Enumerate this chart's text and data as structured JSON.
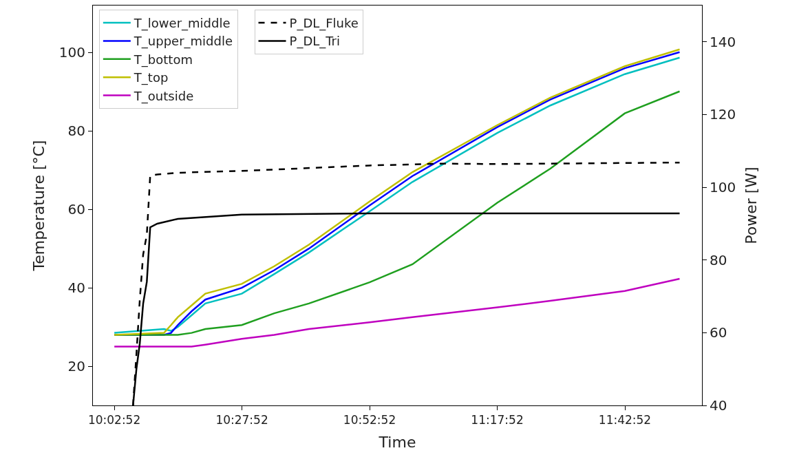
{
  "chart_data": {
    "type": "line",
    "xlabel": "Time",
    "ylabel": "Temperature [°C]",
    "y2label": "Power [W]",
    "xlim": [
      9.978,
      11.966
    ],
    "xticks": [
      {
        "value": 10.047778,
        "label": "10:02:52"
      },
      {
        "value": 10.464444,
        "label": "10:27:52"
      },
      {
        "value": 10.881111,
        "label": "10:52:52"
      },
      {
        "value": 11.297778,
        "label": "11:17:52"
      },
      {
        "value": 11.714444,
        "label": "11:42:52"
      }
    ],
    "ylim": [
      10,
      112
    ],
    "yticks": [
      20,
      40,
      60,
      80,
      100
    ],
    "y2lim": [
      40,
      150
    ],
    "y2ticks": [
      40,
      60,
      80,
      100,
      120,
      140
    ],
    "legend": "top left",
    "marker": "none",
    "series": [
      {
        "name": "T_lower_middle",
        "color": "#00bfbf",
        "line_style": "solid",
        "x": [
          10.048,
          10.21,
          10.233,
          10.255,
          10.3,
          10.345,
          10.464,
          10.57,
          10.683,
          10.881,
          11.021,
          11.298,
          11.471,
          11.714,
          11.893
        ],
        "values": [
          28.5,
          29.5,
          29,
          30,
          33,
          36,
          38.5,
          43.5,
          49,
          59.5,
          67,
          79.5,
          86.5,
          94.5,
          98.7
        ]
      },
      {
        "name": "T_upper_middle",
        "color": "#0000ff",
        "line_style": "solid",
        "x": [
          10.048,
          10.21,
          10.233,
          10.255,
          10.3,
          10.345,
          10.464,
          10.57,
          10.683,
          10.881,
          11.021,
          11.298,
          11.471,
          11.714,
          11.893
        ],
        "values": [
          28,
          28,
          28.5,
          30.5,
          34,
          37,
          40,
          44.5,
          50,
          61,
          68.5,
          81,
          88,
          96,
          100.1
        ]
      },
      {
        "name": "T_bottom",
        "color": "#1f9f1f",
        "line_style": "solid",
        "x": [
          10.048,
          10.21,
          10.233,
          10.255,
          10.3,
          10.345,
          10.464,
          10.57,
          10.683,
          10.881,
          11.021,
          11.298,
          11.471,
          11.714,
          11.893
        ],
        "values": [
          28,
          28,
          28,
          28,
          28.5,
          29.5,
          30.5,
          33.5,
          36,
          41.4,
          46,
          61.7,
          70.4,
          84.5,
          90.1
        ]
      },
      {
        "name": "T_top",
        "color": "#bfbf00",
        "line_style": "solid",
        "x": [
          10.048,
          10.21,
          10.233,
          10.255,
          10.3,
          10.345,
          10.464,
          10.57,
          10.683,
          10.881,
          11.021,
          11.298,
          11.471,
          11.714,
          11.893
        ],
        "values": [
          28,
          28.5,
          30.5,
          32.5,
          35.5,
          38.5,
          41,
          45.5,
          51,
          62,
          69.5,
          81.5,
          88.5,
          96.5,
          100.8
        ]
      },
      {
        "name": "T_outside",
        "color": "#bf00bf",
        "line_style": "solid",
        "x": [
          10.048,
          10.21,
          10.233,
          10.255,
          10.3,
          10.345,
          10.464,
          10.57,
          10.683,
          10.881,
          11.021,
          11.298,
          11.471,
          11.714,
          11.893
        ],
        "values": [
          25,
          25,
          25,
          25,
          25,
          25.5,
          27,
          28,
          29.5,
          31.2,
          32.5,
          35,
          36.7,
          39.2,
          42.3
        ]
      },
      {
        "name": "P_DL_Fluke",
        "color": "#000000",
        "line_style": "dashed",
        "axis": "y2",
        "x": [
          10.109,
          10.12,
          10.131,
          10.142,
          10.154,
          10.165,
          10.188,
          10.255,
          10.464,
          10.881,
          11.111,
          11.298,
          11.893
        ],
        "values": [
          40,
          54,
          69,
          81.5,
          87,
          103.2,
          103.5,
          104,
          104.5,
          106,
          106.5,
          106.4,
          106.8
        ]
      },
      {
        "name": "P_DL_Tri",
        "color": "#000000",
        "line_style": "solid",
        "axis": "y2",
        "x": [
          10.109,
          10.12,
          10.131,
          10.142,
          10.154,
          10.165,
          10.188,
          10.255,
          10.464,
          10.881,
          11.111,
          11.298,
          11.893
        ],
        "values": [
          40,
          50,
          57,
          68,
          74,
          89,
          90,
          91.3,
          92.5,
          92.8,
          92.8,
          92.8,
          92.8
        ]
      }
    ]
  }
}
